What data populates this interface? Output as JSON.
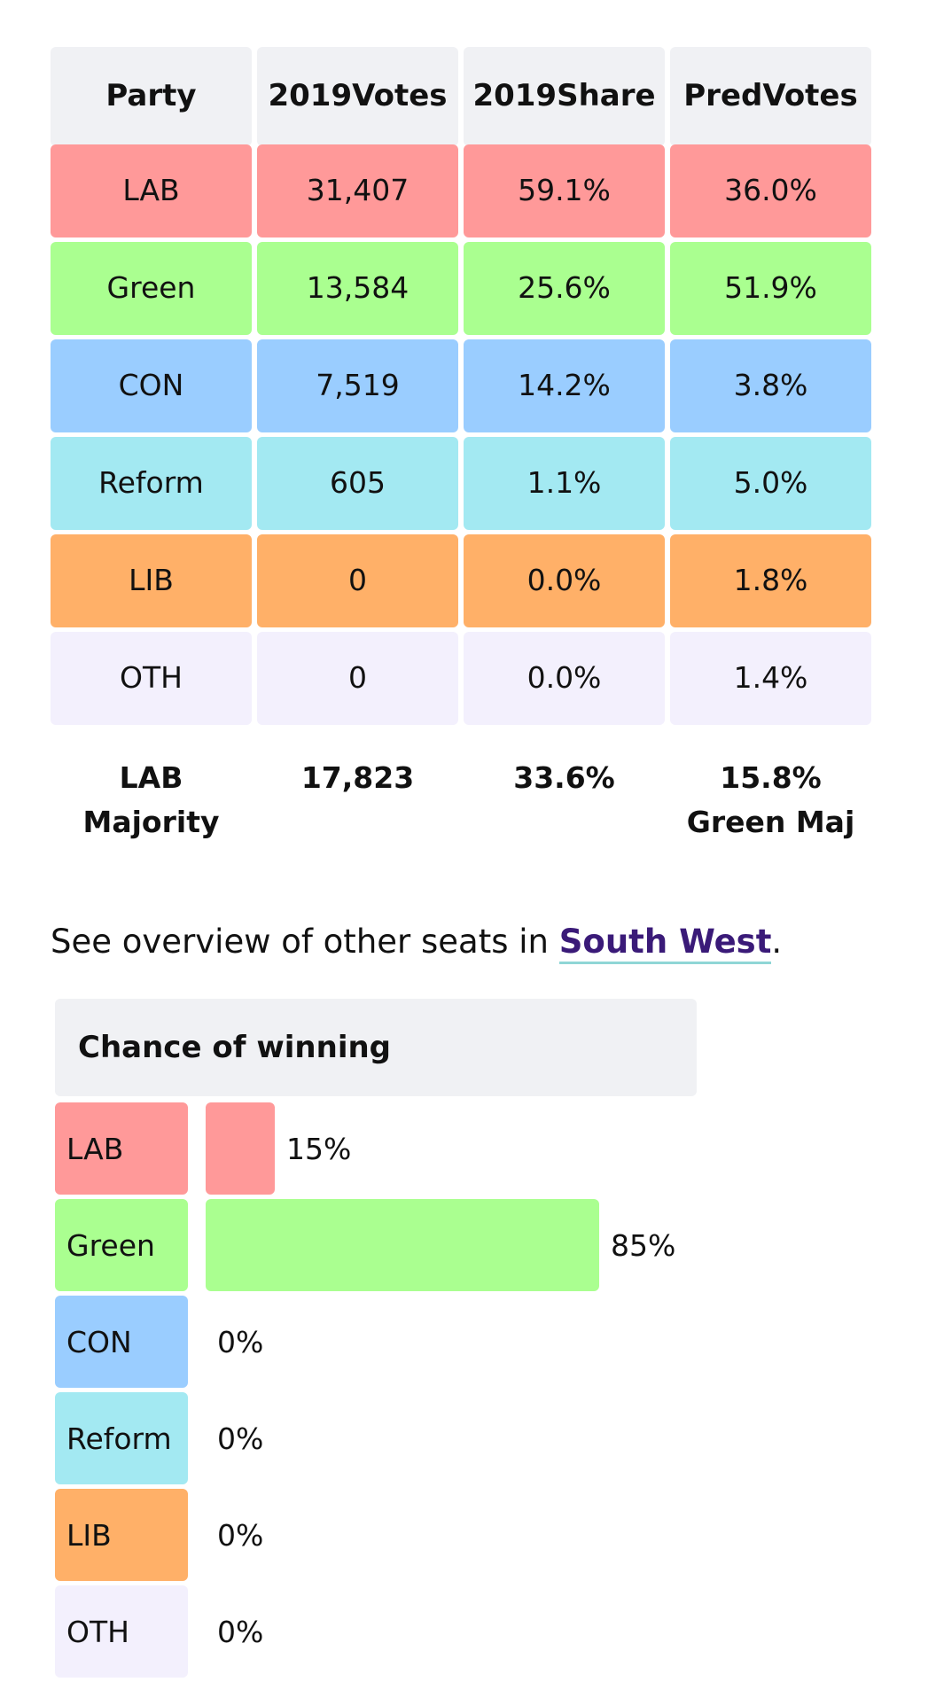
{
  "results": {
    "headers": [
      [
        "Party"
      ],
      [
        "2019",
        "Votes"
      ],
      [
        "2019",
        "Share"
      ],
      [
        "Pred",
        "Votes"
      ]
    ],
    "rows": [
      {
        "party": "LAB",
        "votes": "31,407",
        "share": "59.1%",
        "pred": "36.0%",
        "color": "#ff9999"
      },
      {
        "party": "Green",
        "votes": "13,584",
        "share": "25.6%",
        "pred": "51.9%",
        "color": "#aaff90"
      },
      {
        "party": "CON",
        "votes": "7,519",
        "share": "14.2%",
        "pred": "3.8%",
        "color": "#9acdff"
      },
      {
        "party": "Reform",
        "votes": "605",
        "share": "1.1%",
        "pred": "5.0%",
        "color": "#a3e9f2"
      },
      {
        "party": "LIB",
        "votes": "0",
        "share": "0.0%",
        "pred": "1.8%",
        "color": "#ffb068"
      },
      {
        "party": "OTH",
        "votes": "0",
        "share": "0.0%",
        "pred": "1.4%",
        "color": "#f3f0fd"
      }
    ],
    "summary": {
      "majority_line1": "LAB",
      "majority_line2": "Majority",
      "votes": "17,823",
      "share": "33.6%",
      "pred_line1": "15.8%",
      "pred_line2": "Green Maj"
    }
  },
  "overview": {
    "prefix": "See overview of other seats in ",
    "link_text": "South West",
    "suffix": "."
  },
  "chance": {
    "title": "Chance of winning",
    "rows": [
      {
        "party": "LAB",
        "percent": 15,
        "label": "15%",
        "color": "#ff9999"
      },
      {
        "party": "Green",
        "percent": 85,
        "label": "85%",
        "color": "#aaff90"
      },
      {
        "party": "CON",
        "percent": 0,
        "label": "0%",
        "color": "#9acdff"
      },
      {
        "party": "Reform",
        "percent": 0,
        "label": "0%",
        "color": "#a3e9f2"
      },
      {
        "party": "LIB",
        "percent": 0,
        "label": "0%",
        "color": "#ffb068"
      },
      {
        "party": "OTH",
        "percent": 0,
        "label": "0%",
        "color": "#f3f0fd"
      }
    ]
  }
}
